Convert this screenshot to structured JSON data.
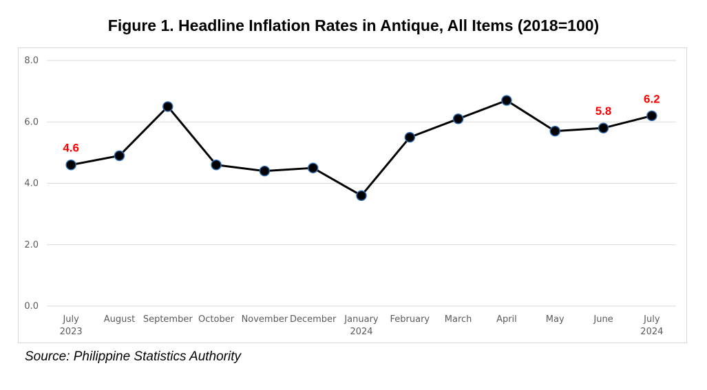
{
  "title": "Figure 1. Headline Inflation Rates in Antique, All Items (2018=100)",
  "source": "Source: Philippine Statistics Authority",
  "colors": {
    "line": "#000000",
    "marker_fill": "#000000",
    "marker_stroke": "#2e6db4",
    "grid": "#d9d9d9",
    "label": "#ff0000"
  },
  "chart_data": {
    "type": "line",
    "title": "Figure 1. Headline Inflation Rates in Antique, All Items (2018=100)",
    "xlabel": "",
    "ylabel": "",
    "categories": [
      [
        "July",
        "2023"
      ],
      [
        "August"
      ],
      [
        "September"
      ],
      [
        "October"
      ],
      [
        "November"
      ],
      [
        "December"
      ],
      [
        "January",
        "2024"
      ],
      [
        "February"
      ],
      [
        "March"
      ],
      [
        "April"
      ],
      [
        "May"
      ],
      [
        "June"
      ],
      [
        "July",
        "2024"
      ]
    ],
    "series": [
      {
        "values": [
          4.6,
          4.9,
          6.5,
          4.6,
          4.4,
          4.5,
          3.6,
          5.5,
          6.1,
          6.7,
          5.7,
          5.8,
          6.2
        ]
      }
    ],
    "data_labels": [
      {
        "index": 0,
        "text": "4.6"
      },
      {
        "index": 11,
        "text": "5.8"
      },
      {
        "index": 12,
        "text": "6.2"
      }
    ],
    "yticks": [
      "0.0",
      "2.0",
      "4.0",
      "6.0",
      "8.0"
    ],
    "ylim": [
      0,
      8
    ],
    "grid": true,
    "legend": "none"
  }
}
